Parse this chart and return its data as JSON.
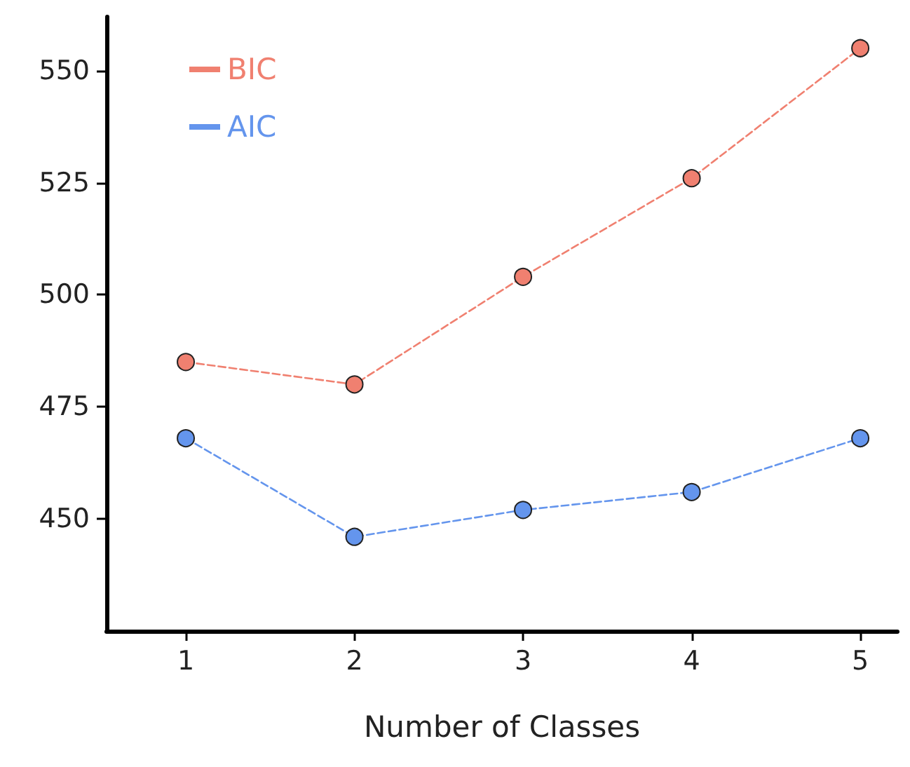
{
  "chart_data": {
    "type": "line",
    "xlabel": "Number of Classes",
    "x": [
      1,
      2,
      3,
      4,
      5
    ],
    "series": [
      {
        "name": "BIC",
        "color": "#f08070",
        "values": [
          485,
          480,
          504,
          526,
          555
        ]
      },
      {
        "name": "AIC",
        "color": "#6495ed",
        "values": [
          468,
          446,
          452,
          456,
          468
        ]
      }
    ],
    "xlim": [
      0.53,
      5.22
    ],
    "xticks": [
      1,
      2,
      3,
      4,
      5
    ],
    "ylim": [
      425,
      562
    ],
    "yticks": [
      450,
      475,
      500,
      525,
      550
    ],
    "grid": false,
    "legend": "top left",
    "marker": "circle",
    "line_style": "dashed"
  }
}
